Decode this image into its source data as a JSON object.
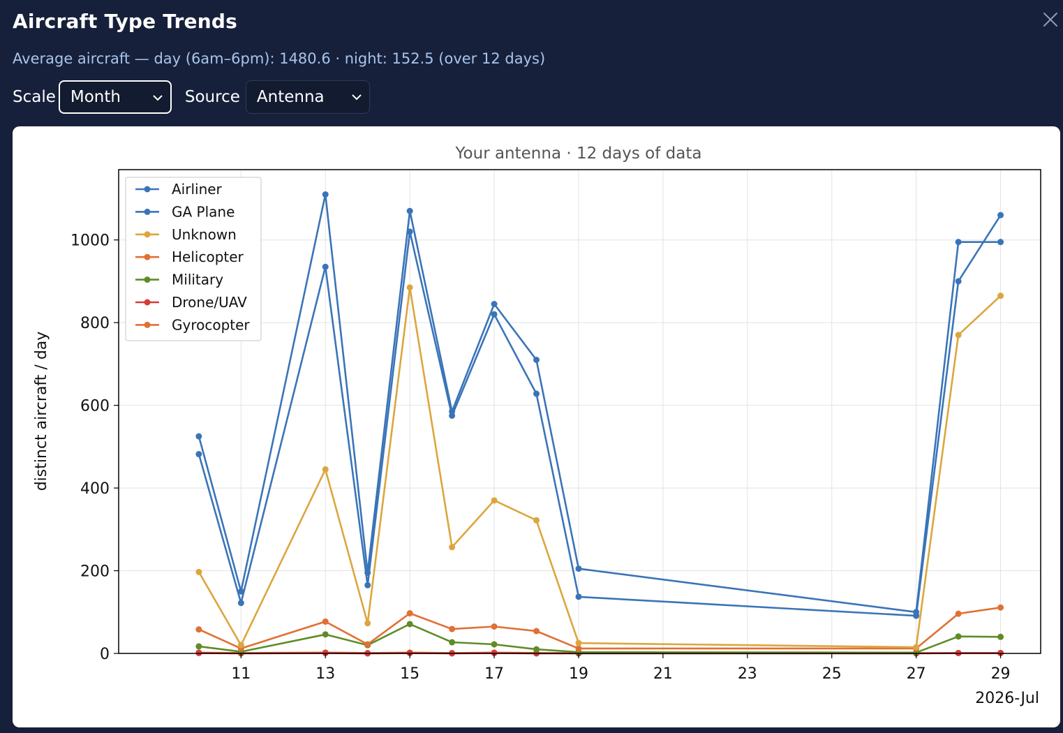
{
  "dialog": {
    "title": "Aircraft Type Trends",
    "subtitle": "Average aircraft — day (6am–6pm): 1480.6 · night: 152.5 (over 12 days)"
  },
  "controls": {
    "scale_label": "Scale",
    "scale_value": "Month",
    "source_label": "Source",
    "source_value": "Antenna"
  },
  "icons": {
    "close": "close-icon",
    "dropdown": "chevron-down-icon"
  },
  "chart_data": {
    "type": "line",
    "title": "Your antenna · 12 days of data",
    "xlabel": "",
    "ylabel": "distinct aircraft / day",
    "x_offset_label": "2026-Jul",
    "x": [
      10,
      11,
      13,
      14,
      15,
      16,
      17,
      18,
      19,
      27,
      28,
      29
    ],
    "xlim": [
      8.1,
      29.95
    ],
    "ylim": [
      0,
      1170
    ],
    "x_ticks": [
      "11",
      "13",
      "15",
      "17",
      "19",
      "21",
      "23",
      "25",
      "27",
      "29"
    ],
    "y_ticks": [
      "0",
      "200",
      "400",
      "600",
      "800",
      "1000"
    ],
    "grid": true,
    "legend_position": "top-left",
    "series": [
      {
        "name": "Airliner",
        "color": "#3a74b8",
        "values": [
          525,
          150,
          1110,
          195,
          1070,
          585,
          845,
          710,
          205,
          100,
          995,
          995
        ]
      },
      {
        "name": "GA Plane",
        "color": "#3a74b8",
        "values": [
          482,
          122,
          935,
          165,
          1020,
          575,
          820,
          628,
          137,
          91,
          900,
          1060
        ]
      },
      {
        "name": "Unknown",
        "color": "#dca63d",
        "values": [
          197,
          20,
          445,
          73,
          885,
          257,
          370,
          322,
          25,
          15,
          770,
          865
        ]
      },
      {
        "name": "Helicopter",
        "color": "#e07034",
        "values": [
          58,
          12,
          77,
          22,
          97,
          59,
          65,
          54,
          12,
          12,
          96,
          111
        ]
      },
      {
        "name": "Military",
        "color": "#5f8c26",
        "values": [
          17,
          4,
          46,
          20,
          71,
          27,
          22,
          10,
          3,
          2,
          41,
          40
        ]
      },
      {
        "name": "Drone/UAV",
        "color": "#d63a3a",
        "values": [
          1,
          0,
          1,
          0,
          1,
          0,
          1,
          0,
          0,
          0,
          1,
          1
        ]
      },
      {
        "name": "Gyrocopter",
        "color": "#e07034",
        "values": [
          2,
          1,
          2,
          1,
          2,
          1,
          2,
          1,
          1,
          1,
          1,
          1
        ]
      }
    ]
  }
}
